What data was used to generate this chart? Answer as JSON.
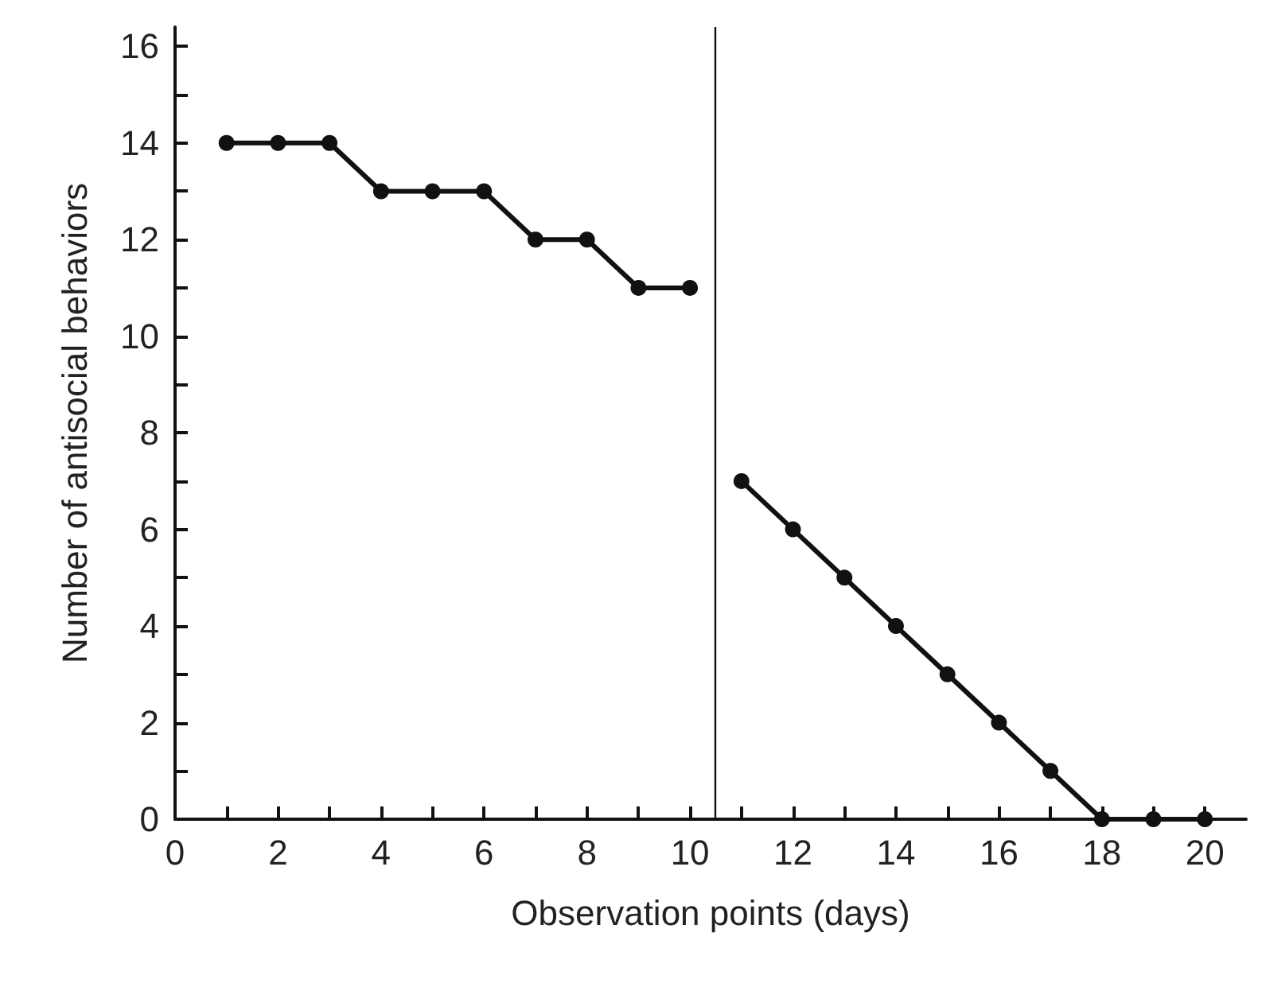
{
  "chart_data": {
    "type": "line",
    "xlabel": "Observation points (days)",
    "ylabel": "Number of antisocial behaviors",
    "xlim": [
      0,
      20.8
    ],
    "ylim": [
      0,
      16.4
    ],
    "xticks": [
      0,
      {
        "value": 1,
        "label": null
      },
      2,
      {
        "value": 3,
        "label": null
      },
      4,
      {
        "value": 5,
        "label": null
      },
      6,
      {
        "value": 7,
        "label": null
      },
      8,
      {
        "value": 9,
        "label": null
      },
      10,
      {
        "value": 11,
        "label": null
      },
      12,
      {
        "value": 13,
        "label": null
      },
      14,
      {
        "value": 15,
        "label": null
      },
      16,
      {
        "value": 17,
        "label": null
      },
      18,
      {
        "value": 19,
        "label": null
      },
      20
    ],
    "yticks": [
      0,
      {
        "value": 1,
        "label": null
      },
      2,
      {
        "value": 3,
        "label": null
      },
      4,
      {
        "value": 5,
        "label": null
      },
      6,
      {
        "value": 7,
        "label": null
      },
      8,
      {
        "value": 9,
        "label": null
      },
      10,
      {
        "value": 11,
        "label": null
      },
      12,
      {
        "value": 13,
        "label": null
      },
      14,
      {
        "value": 15,
        "label": null
      },
      16
    ],
    "series": [
      {
        "color": "#111111",
        "x": [
          1,
          2,
          3,
          4,
          5,
          6,
          7,
          8,
          9,
          10
        ],
        "values": [
          14,
          14,
          14,
          13,
          13,
          13,
          12,
          12,
          11,
          11
        ]
      },
      {
        "color": "#111111",
        "x": [
          11,
          12,
          13,
          14,
          15,
          16,
          17,
          18,
          19,
          20
        ],
        "values": [
          7,
          6,
          5,
          4,
          3,
          2,
          1,
          0,
          0,
          0
        ]
      }
    ],
    "ref_lines": [
      {
        "axis": "x",
        "value": 10.5,
        "color": "#111111"
      }
    ],
    "marker": "circle",
    "line_style": "solid",
    "grid": false
  }
}
